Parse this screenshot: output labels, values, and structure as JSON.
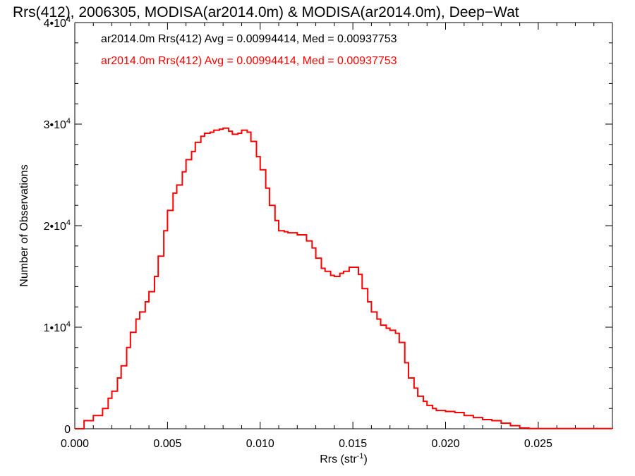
{
  "chart_data": {
    "type": "histogram-step",
    "title": "Rrs(412), 2006305, MODISA(ar2014.0m) & MODISA(ar2014.0m), Deep−Wat",
    "xlabel_main": "Rrs (str",
    "xlabel_sup": "-1",
    "xlabel_end": ")",
    "ylabel": "Number of Observations",
    "xlim": [
      0.0,
      0.029
    ],
    "ylim": [
      0,
      40000
    ],
    "x_ticks": [
      {
        "value": 0.0,
        "label": "0.000"
      },
      {
        "value": 0.005,
        "label": "0.005"
      },
      {
        "value": 0.01,
        "label": "0.010"
      },
      {
        "value": 0.015,
        "label": "0.015"
      },
      {
        "value": 0.02,
        "label": "0.020"
      },
      {
        "value": 0.025,
        "label": "0.025"
      }
    ],
    "y_ticks": [
      {
        "value": 0,
        "mantissa": "0",
        "exp": ""
      },
      {
        "value": 10000,
        "mantissa": "1•10",
        "exp": "4"
      },
      {
        "value": 20000,
        "mantissa": "2•10",
        "exp": "4"
      },
      {
        "value": 30000,
        "mantissa": "3•10",
        "exp": "4"
      },
      {
        "value": 40000,
        "mantissa": "4•10",
        "exp": "4"
      }
    ],
    "annotations": [
      {
        "text": "ar2014.0m Rrs(412) Avg = 0.00994414, Med = 0.00937753",
        "color": "#000000"
      },
      {
        "text": "ar2014.0m Rrs(412) Avg = 0.00994414, Med = 0.00937753",
        "color": "#ff0000"
      }
    ],
    "series": [
      {
        "color": "#ff0000",
        "points": [
          [
            0.0,
            0
          ],
          [
            0.0005,
            800
          ],
          [
            0.001,
            1300
          ],
          [
            0.0015,
            2000
          ],
          [
            0.0018,
            3000
          ],
          [
            0.002,
            3700
          ],
          [
            0.0023,
            5000
          ],
          [
            0.0025,
            6200
          ],
          [
            0.0028,
            8000
          ],
          [
            0.003,
            9500
          ],
          [
            0.0033,
            10800
          ],
          [
            0.0035,
            11500
          ],
          [
            0.0038,
            12500
          ],
          [
            0.004,
            13500
          ],
          [
            0.0043,
            15000
          ],
          [
            0.0045,
            17000
          ],
          [
            0.0048,
            19500
          ],
          [
            0.005,
            21500
          ],
          [
            0.0053,
            23200
          ],
          [
            0.0055,
            24000
          ],
          [
            0.0058,
            25300
          ],
          [
            0.006,
            26500
          ],
          [
            0.0063,
            27300
          ],
          [
            0.0065,
            28200
          ],
          [
            0.0068,
            28800
          ],
          [
            0.007,
            29100
          ],
          [
            0.0073,
            29200
          ],
          [
            0.0075,
            29400
          ],
          [
            0.0078,
            29500
          ],
          [
            0.008,
            29600
          ],
          [
            0.0083,
            29300
          ],
          [
            0.0085,
            29000
          ],
          [
            0.0088,
            29100
          ],
          [
            0.009,
            29400
          ],
          [
            0.0093,
            29200
          ],
          [
            0.0095,
            28300
          ],
          [
            0.0098,
            26800
          ],
          [
            0.01,
            25500
          ],
          [
            0.0103,
            23700
          ],
          [
            0.0105,
            22000
          ],
          [
            0.0108,
            20500
          ],
          [
            0.011,
            19500
          ],
          [
            0.0113,
            19400
          ],
          [
            0.0115,
            19300
          ],
          [
            0.012,
            19100
          ],
          [
            0.0125,
            18500
          ],
          [
            0.0128,
            17800
          ],
          [
            0.013,
            16800
          ],
          [
            0.0133,
            15800
          ],
          [
            0.0135,
            15500
          ],
          [
            0.0138,
            15100
          ],
          [
            0.014,
            15000
          ],
          [
            0.0143,
            15300
          ],
          [
            0.0145,
            15500
          ],
          [
            0.0148,
            15900
          ],
          [
            0.015,
            15900
          ],
          [
            0.0153,
            15200
          ],
          [
            0.0155,
            13800
          ],
          [
            0.0158,
            12500
          ],
          [
            0.016,
            11500
          ],
          [
            0.0163,
            10800
          ],
          [
            0.0165,
            10200
          ],
          [
            0.0168,
            9900
          ],
          [
            0.017,
            9700
          ],
          [
            0.0173,
            9400
          ],
          [
            0.0175,
            8500
          ],
          [
            0.0178,
            6500
          ],
          [
            0.018,
            5000
          ],
          [
            0.0183,
            4000
          ],
          [
            0.0185,
            3200
          ],
          [
            0.0188,
            2700
          ],
          [
            0.019,
            2300
          ],
          [
            0.0193,
            2000
          ],
          [
            0.0195,
            1800
          ],
          [
            0.02,
            1700
          ],
          [
            0.0205,
            1600
          ],
          [
            0.021,
            1300
          ],
          [
            0.0215,
            1100
          ],
          [
            0.022,
            900
          ],
          [
            0.0225,
            800
          ],
          [
            0.023,
            550
          ],
          [
            0.0235,
            300
          ],
          [
            0.024,
            80
          ],
          [
            0.0245,
            20
          ],
          [
            0.029,
            0
          ]
        ]
      }
    ]
  }
}
